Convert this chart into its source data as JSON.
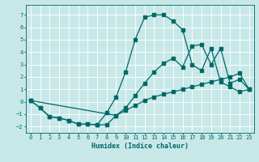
{
  "xlabel": "Humidex (Indice chaleur)",
  "background_color": "#c8e8e8",
  "grid_color": "#b0d8d8",
  "line_color": "#006868",
  "xlim": [
    -0.5,
    23.5
  ],
  "ylim": [
    -2.5,
    7.8
  ],
  "xticks": [
    0,
    1,
    2,
    3,
    4,
    5,
    6,
    7,
    8,
    9,
    10,
    11,
    12,
    13,
    14,
    15,
    16,
    17,
    18,
    19,
    20,
    21,
    22,
    23
  ],
  "yticks": [
    -2,
    -1,
    0,
    1,
    2,
    3,
    4,
    5,
    6,
    7
  ],
  "line1_x": [
    0,
    1,
    2,
    3,
    4,
    5,
    6,
    7,
    8,
    9,
    10,
    11,
    12,
    13,
    14,
    15,
    16,
    17,
    18,
    19,
    20,
    21,
    22,
    23
  ],
  "line1_y": [
    0.1,
    -0.5,
    -1.2,
    -1.3,
    -1.5,
    -1.8,
    -1.8,
    -1.85,
    -1.85,
    -1.1,
    -0.7,
    -0.3,
    0.1,
    0.4,
    0.6,
    0.8,
    1.0,
    1.2,
    1.4,
    1.6,
    1.8,
    2.0,
    2.3,
    1.0
  ],
  "line2_x": [
    0,
    1,
    2,
    3,
    4,
    5,
    6,
    7,
    8,
    9,
    10,
    11,
    12,
    13,
    14,
    15,
    16,
    17,
    18,
    19,
    20,
    21,
    22,
    23
  ],
  "line2_y": [
    0.1,
    -0.5,
    -1.2,
    -1.3,
    -1.5,
    -1.8,
    -1.8,
    -1.85,
    -0.9,
    0.4,
    2.4,
    5.0,
    6.8,
    7.0,
    7.0,
    6.5,
    5.8,
    3.0,
    2.5,
    4.3,
    1.6,
    1.2,
    0.8,
    1.0
  ],
  "line3_x": [
    0,
    9,
    10,
    11,
    12,
    13,
    14,
    15,
    16,
    17,
    18,
    19,
    20,
    21,
    22,
    23
  ],
  "line3_y": [
    0.1,
    -1.1,
    -0.5,
    0.5,
    1.5,
    2.4,
    3.1,
    3.5,
    2.8,
    4.5,
    4.6,
    3.0,
    4.3,
    1.5,
    1.8,
    1.0
  ]
}
